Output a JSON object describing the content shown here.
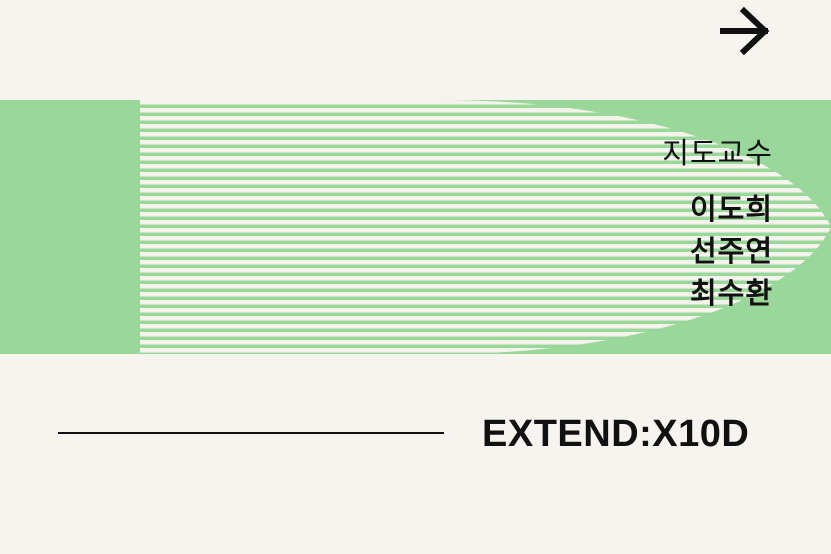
{
  "nav": {
    "next_icon": "arrow-right-icon"
  },
  "colors": {
    "background": "#f7f4f0",
    "accent_green": "#9ad79a",
    "stripe_light": "#f4f4ec",
    "text": "#111111"
  },
  "credits": {
    "label": "지도교수",
    "names": [
      "이도희",
      "선주연",
      "최수환"
    ]
  },
  "project": {
    "title": "EXTEND:X10D"
  }
}
